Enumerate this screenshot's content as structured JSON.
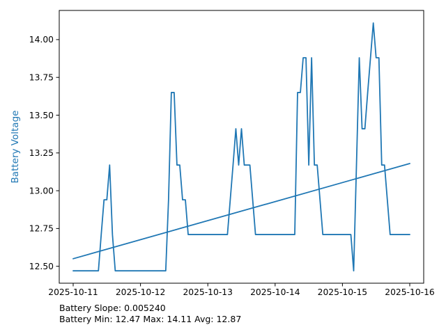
{
  "chart_data": {
    "type": "line",
    "title": "",
    "ylabel": "Battery Voltage",
    "ylabel_color": "#1f77b4",
    "line_color": "#1f77b4",
    "trend_color": "#1f77b4",
    "background": "#ffffff",
    "grid": false,
    "legend": false,
    "x_tick_labels": [
      "2025-10-11",
      "2025-10-12",
      "2025-10-13",
      "2025-10-14",
      "2025-10-15",
      "2025-10-16"
    ],
    "y_ticks": [
      12.5,
      12.75,
      13.0,
      13.25,
      13.5,
      13.75,
      14.0
    ],
    "y_tick_labels": [
      "12.50",
      "12.75",
      "13.00",
      "13.25",
      "13.50",
      "13.75",
      "14.00"
    ],
    "xlim_hours": [
      0,
      120
    ],
    "ylim": [
      12.388,
      14.193
    ],
    "series": [
      {
        "name": "battery_voltage",
        "x_start_hour": 0,
        "x_step_hours": 1,
        "values": [
          12.47,
          12.47,
          12.47,
          12.47,
          12.47,
          12.47,
          12.47,
          12.47,
          12.47,
          12.47,
          12.71,
          12.94,
          12.94,
          13.17,
          12.71,
          12.47,
          12.47,
          12.47,
          12.47,
          12.47,
          12.47,
          12.47,
          12.47,
          12.47,
          12.47,
          12.47,
          12.47,
          12.47,
          12.47,
          12.47,
          12.47,
          12.47,
          12.47,
          12.47,
          12.94,
          13.65,
          13.65,
          13.17,
          13.17,
          12.94,
          12.94,
          12.71,
          12.71,
          12.71,
          12.71,
          12.71,
          12.71,
          12.71,
          12.71,
          12.71,
          12.71,
          12.71,
          12.71,
          12.71,
          12.71,
          12.71,
          12.94,
          13.17,
          13.41,
          13.17,
          13.41,
          13.17,
          13.17,
          13.17,
          12.94,
          12.71,
          12.71,
          12.71,
          12.71,
          12.71,
          12.71,
          12.71,
          12.71,
          12.71,
          12.71,
          12.71,
          12.71,
          12.71,
          12.71,
          12.71,
          13.65,
          13.65,
          13.88,
          13.88,
          13.17,
          13.88,
          13.17,
          13.17,
          12.94,
          12.71,
          12.71,
          12.71,
          12.71,
          12.71,
          12.71,
          12.71,
          12.71,
          12.71,
          12.71,
          12.71,
          12.47,
          13.17,
          13.88,
          13.41,
          13.41,
          13.65,
          13.88,
          14.11,
          13.88,
          13.88,
          13.17,
          13.17,
          12.94,
          12.71,
          12.71,
          12.71,
          12.71,
          12.71,
          12.71,
          12.71,
          12.71
        ]
      },
      {
        "name": "trend",
        "x_hours": [
          0,
          120
        ],
        "values": [
          12.55,
          13.18
        ]
      }
    ],
    "annotations": [
      "Battery Slope: 0.005240",
      "Battery Min: 12.47 Max: 14.11 Avg: 12.87"
    ],
    "stats": {
      "slope": "0.005240",
      "min": "12.47",
      "max": "14.11",
      "avg": "12.87"
    }
  }
}
